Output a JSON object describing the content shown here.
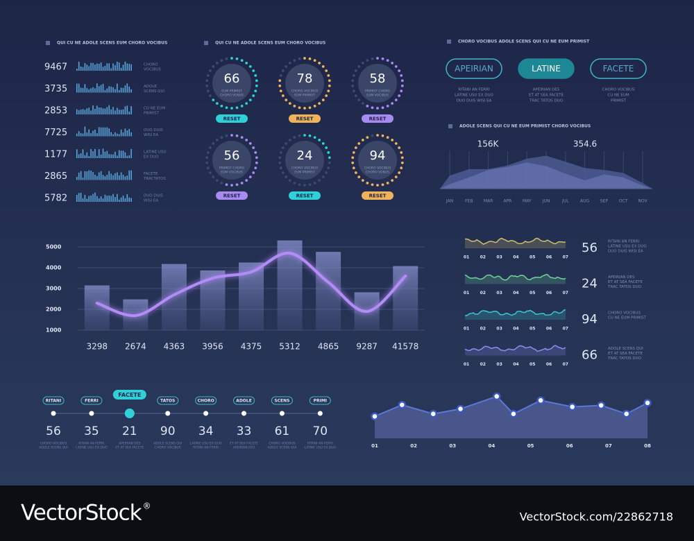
{
  "stats_panel": {
    "title": "QUI CU NE ADOLE SCENS EUM CHORO VOCIBUS",
    "rows": [
      {
        "value": 9467,
        "label": [
          "CHORO",
          "VOCIBUS"
        ]
      },
      {
        "value": 3735,
        "label": [
          "ADOLE",
          "SCENS QUI"
        ]
      },
      {
        "value": 2853,
        "label": [
          "CU NE EUM",
          "PRIMIST"
        ]
      },
      {
        "value": 7725,
        "label": [
          "DUO DUIS",
          "WISI EA"
        ]
      },
      {
        "value": 1177,
        "label": [
          "LATINE USU",
          "EX DUO"
        ]
      },
      {
        "value": 2865,
        "label": [
          "FACETE",
          "TRACTATOS"
        ]
      },
      {
        "value": 5782,
        "label": [
          "DUO DUIS",
          "WISI EA"
        ]
      }
    ]
  },
  "gauges_panel": {
    "title": "QUI CU NE ADOLE SCENS EUM CHORO VOCIBUS",
    "gauges": [
      {
        "value": 66,
        "caption": [
          "EUM PRIMIST",
          "CHORO VOBUS"
        ],
        "button": "RESET",
        "color": "#2fd0d8"
      },
      {
        "value": 78,
        "caption": [
          "CHORO VOCIBUS",
          "EUM PRIMIST"
        ],
        "button": "RESET",
        "color": "#f0b35a"
      },
      {
        "value": 58,
        "caption": [
          "PRIMIST CHORO",
          "EUM VOCIBUS"
        ],
        "button": "RESET",
        "color": "#a98af0"
      },
      {
        "value": 56,
        "caption": [
          "PRIMIST CHORO",
          "EUM VOCIBUS"
        ],
        "button": "RESET",
        "color": "#a98af0"
      },
      {
        "value": 24,
        "caption": [
          "CHORO VOCIBUS",
          "EUM PRIMIST"
        ],
        "button": "RESET",
        "color": "#2fd0d8"
      },
      {
        "value": 94,
        "caption": [
          "CHORO VOCIBUS",
          "CHORO VOBUS"
        ],
        "button": "RESET",
        "color": "#f0b35a"
      }
    ]
  },
  "buttons_panel": {
    "title": "CHORO VOCIBUS ADOLE SCENS QUI CU NE EUM PRIMIST",
    "buttons": [
      {
        "label": "APEIRIAN",
        "caption": [
          "RITANI AN FERRI",
          "LATINE USU EX DUO",
          "DUO DUIS WISI EA"
        ]
      },
      {
        "label": "LATINE",
        "caption": [
          "APEIRIAN DES",
          "ET AT SEA FACETE",
          "TRAC TATOS DUO"
        ]
      },
      {
        "label": "FACETE",
        "caption": [
          "CHORO VOCIBUS",
          "CU NE EUM",
          "PRIMIST"
        ]
      }
    ],
    "active": 1
  },
  "area_chart": {
    "title": "ADOLE SCENS QUI CU NE EUM PRIMIST CHORO VOCIBUS",
    "annotations": [
      "156K",
      "354.6"
    ],
    "categories": [
      "JAN",
      "FEB",
      "MAR",
      "APR",
      "MAY",
      "JUN",
      "JUL",
      "AUG",
      "SEP",
      "OCT",
      "NOV"
    ],
    "ylim": [
      0,
      100
    ],
    "series": [
      {
        "color": "#4b5a92",
        "values": [
          35,
          52,
          52,
          62,
          80,
          88,
          72,
          55,
          50,
          42,
          15
        ]
      },
      {
        "color": "#7480c0",
        "values": [
          12,
          30,
          50,
          58,
          70,
          60,
          40,
          22,
          38,
          30,
          8
        ]
      }
    ]
  },
  "main_chart": {
    "type": "bar",
    "categories": [
      "3298",
      "2674",
      "4363",
      "3956",
      "4375",
      "5312",
      "4865",
      "9287",
      "41578"
    ],
    "ylim": [
      1000,
      5400
    ],
    "yticks": [
      1000,
      2000,
      3000,
      4000,
      5000
    ],
    "grid": true,
    "series": [
      {
        "type": "bar",
        "color": "#7f88c8",
        "values": [
          3150,
          2480,
          4180,
          3870,
          4250,
          5310,
          4760,
          2820,
          4080
        ]
      },
      {
        "type": "line",
        "color": "#b48cf7",
        "values": [
          2300,
          1700,
          2700,
          3500,
          3800,
          4700,
          3300,
          1900,
          3600
        ]
      }
    ]
  },
  "wave_panel": {
    "xticks": [
      "01",
      "02",
      "03",
      "04",
      "05",
      "06",
      "07"
    ],
    "rows": [
      {
        "value": 56,
        "caption": [
          "RITANI AN FERRI",
          "LATINE USU EX DUO",
          "DUO DUIS WISI EA"
        ],
        "color": "#d2bf6e"
      },
      {
        "value": 24,
        "caption": [
          "APEIRIAN DES",
          "ET AT SEA FACETE",
          "TRAC TATOS DUO"
        ],
        "color": "#6fd39a"
      },
      {
        "value": 94,
        "caption": [
          "CHORO VOCIBUS",
          "CU NE EUM PRIMIST"
        ],
        "color": "#39c8d2"
      },
      {
        "value": 66,
        "caption": [
          "ADOLE SCENS QUI",
          "ET AT SEA FACETE",
          "TRAC TATOS DUO"
        ],
        "color": "#8d8ff0"
      }
    ]
  },
  "timeline": {
    "active": 2,
    "steps": [
      {
        "tag": "RITANI",
        "value": 56,
        "caption": [
          "CHORO VOCIBUS",
          "ADOLE SCENS QUI"
        ]
      },
      {
        "tag": "FERRI",
        "value": 35,
        "caption": [
          "RITANI AN FERRI",
          "LATINE USU EX DUO"
        ]
      },
      {
        "tag": "FACETE",
        "value": 21,
        "caption": [
          "APEIRIAN DES",
          "ET AT SEA FACETE"
        ]
      },
      {
        "tag": "TATOS",
        "value": 90,
        "caption": [
          "ADOLE SCENS QUI",
          "CHORO VOCIBUS"
        ]
      },
      {
        "tag": "CHORO",
        "value": 34,
        "caption": [
          "LATINE USU EX DUO",
          "RITANI AN FERRI"
        ]
      },
      {
        "tag": "ADOLE",
        "value": 33,
        "caption": [
          "ET AT SEA FACETE",
          "APEIRIAN DES"
        ]
      },
      {
        "tag": "SCENS",
        "value": 61,
        "caption": [
          "CHORO VOCIBUS",
          "ADOLE SCENS QUI"
        ]
      },
      {
        "tag": "PRIMI",
        "value": 70,
        "caption": [
          "RITANI AN FERRI",
          "LATINE USU EX DUO"
        ]
      }
    ]
  },
  "line_chart": {
    "type": "line",
    "xlim": [
      1,
      8
    ],
    "ylim": [
      0,
      100
    ],
    "xticks": [
      {
        "value": 1,
        "label": "01"
      },
      {
        "value": 2,
        "label": "02"
      },
      {
        "value": 3,
        "label": "03"
      },
      {
        "value": 4,
        "label": "04"
      },
      {
        "value": 5,
        "label": "05"
      },
      {
        "value": 6,
        "label": "06"
      },
      {
        "value": 7,
        "label": "07"
      },
      {
        "value": 8,
        "label": "08"
      }
    ],
    "x": [
      1,
      1.7,
      2.5,
      3.2,
      4.13,
      4.56,
      5.26,
      6.07,
      6.81,
      7.46,
      8
    ],
    "values": [
      44,
      67,
      49,
      59,
      84,
      49,
      76,
      63,
      66,
      49,
      71
    ],
    "color": "#4d5a90"
  },
  "footer": {
    "logo": "VectorStock",
    "registered": "®",
    "id": "VectorStock.com/22862718"
  }
}
